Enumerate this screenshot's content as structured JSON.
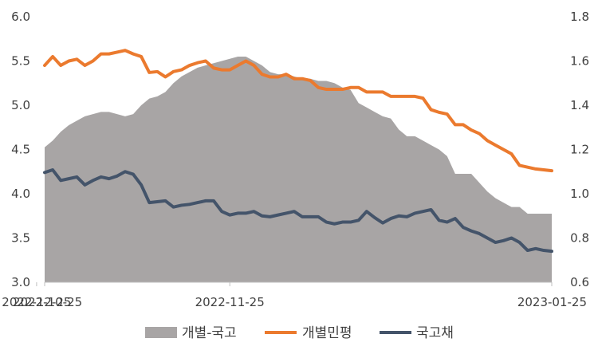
{
  "chart_data": {
    "type": "line",
    "title": "",
    "xlabel": "",
    "ylabel_left": "",
    "ylabel_right": "",
    "x_tick_labels": [
      "2022-10-25",
      "2022-11-25",
      "2022-12-25",
      "2023-01-25"
    ],
    "y_left": {
      "lim": [
        3.0,
        6.0
      ],
      "ticks": [
        "3.0",
        "3.5",
        "4.0",
        "4.5",
        "5.0",
        "5.5",
        "6.0"
      ]
    },
    "y_right": {
      "lim": [
        0.6,
        1.8
      ],
      "ticks": [
        "0.6",
        "0.8",
        "1.0",
        "1.2",
        "1.4",
        "1.6",
        "1.8"
      ]
    },
    "grid": false,
    "legend_position": "bottom",
    "x": [
      "2022-10-25",
      "2022-10-26",
      "2022-10-27",
      "2022-10-28",
      "2022-10-31",
      "2022-11-01",
      "2022-11-02",
      "2022-11-03",
      "2022-11-04",
      "2022-11-07",
      "2022-11-08",
      "2022-11-09",
      "2022-11-10",
      "2022-11-11",
      "2022-11-14",
      "2022-11-15",
      "2022-11-16",
      "2022-11-17",
      "2022-11-18",
      "2022-11-21",
      "2022-11-22",
      "2022-11-23",
      "2022-11-24",
      "2022-11-25",
      "2022-11-28",
      "2022-11-29",
      "2022-11-30",
      "2022-12-01",
      "2022-12-02",
      "2022-12-05",
      "2022-12-06",
      "2022-12-07",
      "2022-12-08",
      "2022-12-09",
      "2022-12-12",
      "2022-12-13",
      "2022-12-14",
      "2022-12-15",
      "2022-12-16",
      "2022-12-19",
      "2022-12-20",
      "2022-12-21",
      "2022-12-22",
      "2022-12-23",
      "2022-12-26",
      "2022-12-27",
      "2022-12-28",
      "2022-12-29",
      "2023-01-02",
      "2023-01-03",
      "2023-01-04",
      "2023-01-05",
      "2023-01-06",
      "2023-01-09",
      "2023-01-10",
      "2023-01-11",
      "2023-01-12",
      "2023-01-13",
      "2023-01-16",
      "2023-01-17",
      "2023-01-18",
      "2023-01-19",
      "2023-01-20",
      "2023-01-25"
    ],
    "series": [
      {
        "name": "개별-국고",
        "type": "area",
        "axis": "right",
        "color": "#A8A5A5",
        "values": [
          1.21,
          1.24,
          1.28,
          1.31,
          1.33,
          1.35,
          1.36,
          1.37,
          1.37,
          1.36,
          1.35,
          1.36,
          1.4,
          1.43,
          1.44,
          1.46,
          1.5,
          1.53,
          1.55,
          1.57,
          1.58,
          1.59,
          1.6,
          1.61,
          1.62,
          1.62,
          1.6,
          1.58,
          1.55,
          1.54,
          1.54,
          1.53,
          1.52,
          1.52,
          1.51,
          1.51,
          1.5,
          1.48,
          1.47,
          1.41,
          1.39,
          1.37,
          1.35,
          1.34,
          1.29,
          1.26,
          1.26,
          1.24,
          1.22,
          1.2,
          1.17,
          1.09,
          1.09,
          1.09,
          1.05,
          1.01,
          0.98,
          0.96,
          0.94,
          0.94,
          0.91,
          0.91,
          0.91,
          0.91
        ]
      },
      {
        "name": "개별민평",
        "type": "line",
        "axis": "left",
        "color": "#EB7A2E",
        "values": [
          5.45,
          5.55,
          5.45,
          5.5,
          5.52,
          5.45,
          5.5,
          5.58,
          5.58,
          5.6,
          5.62,
          5.58,
          5.55,
          5.37,
          5.38,
          5.32,
          5.38,
          5.4,
          5.45,
          5.48,
          5.5,
          5.42,
          5.4,
          5.4,
          5.45,
          5.5,
          5.45,
          5.35,
          5.32,
          5.32,
          5.35,
          5.3,
          5.3,
          5.28,
          5.2,
          5.18,
          5.18,
          5.18,
          5.2,
          5.2,
          5.15,
          5.15,
          5.15,
          5.1,
          5.1,
          5.1,
          5.1,
          5.08,
          4.95,
          4.92,
          4.9,
          4.78,
          4.78,
          4.72,
          4.68,
          4.6,
          4.55,
          4.5,
          4.45,
          4.32,
          4.3,
          4.28,
          4.27,
          4.26
        ]
      },
      {
        "name": "국고채",
        "type": "line",
        "axis": "left",
        "color": "#44546A",
        "values": [
          4.24,
          4.27,
          4.15,
          4.17,
          4.19,
          4.1,
          4.15,
          4.19,
          4.17,
          4.2,
          4.25,
          4.22,
          4.1,
          3.9,
          3.91,
          3.92,
          3.85,
          3.87,
          3.88,
          3.9,
          3.92,
          3.92,
          3.8,
          3.76,
          3.78,
          3.78,
          3.8,
          3.75,
          3.74,
          3.76,
          3.78,
          3.8,
          3.74,
          3.74,
          3.74,
          3.68,
          3.66,
          3.68,
          3.68,
          3.7,
          3.8,
          3.73,
          3.67,
          3.72,
          3.75,
          3.74,
          3.78,
          3.8,
          3.82,
          3.7,
          3.68,
          3.72,
          3.62,
          3.58,
          3.55,
          3.5,
          3.45,
          3.47,
          3.5,
          3.45,
          3.36,
          3.38,
          3.36,
          3.35
        ]
      }
    ]
  }
}
